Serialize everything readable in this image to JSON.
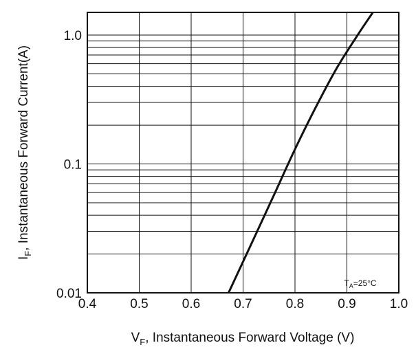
{
  "chart_data": {
    "type": "line",
    "title": "",
    "xlabel": {
      "main": "V",
      "sub": "F",
      "rest": ",  Instantaneous Forward Voltage (V)"
    },
    "ylabel": {
      "main": "I",
      "sub": "F",
      "rest": ",  Instantaneous Forward Current(A)"
    },
    "x_scale": "linear",
    "y_scale": "log",
    "xlim": [
      0.4,
      1.0
    ],
    "ylim": [
      0.01,
      1.5
    ],
    "x_ticks": [
      {
        "value": 0.4,
        "label": "0.4"
      },
      {
        "value": 0.5,
        "label": "0.5"
      },
      {
        "value": 0.6,
        "label": "0.6"
      },
      {
        "value": 0.7,
        "label": "0.7"
      },
      {
        "value": 0.8,
        "label": "0.8"
      },
      {
        "value": 0.9,
        "label": "0.9"
      },
      {
        "value": 1.0,
        "label": "1.0"
      }
    ],
    "y_ticks": [
      {
        "value": 0.01,
        "label": "0.01"
      },
      {
        "value": 0.1,
        "label": "0.1"
      },
      {
        "value": 1.0,
        "label": "1.0"
      }
    ],
    "grid": true,
    "annotation": {
      "main": "T",
      "sub": "A",
      "rest": "=25°C"
    },
    "series": [
      {
        "x": [
          0.672,
          0.72,
          0.76,
          0.8,
          0.84,
          0.88,
          0.92,
          0.95
        ],
        "y": [
          0.01,
          0.026,
          0.058,
          0.13,
          0.275,
          0.55,
          0.99,
          1.5
        ]
      }
    ]
  }
}
